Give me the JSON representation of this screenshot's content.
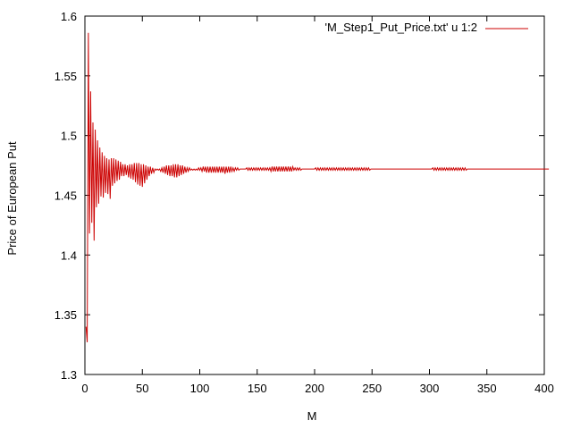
{
  "chart_data": {
    "type": "line",
    "title": "",
    "xlabel": "M",
    "ylabel": "Price of European Put",
    "xlim": [
      0,
      400
    ],
    "ylim": [
      1.3,
      1.6
    ],
    "x_ticks": [
      0,
      50,
      100,
      150,
      200,
      250,
      300,
      350,
      400
    ],
    "y_ticks": [
      1.3,
      1.35,
      1.4,
      1.45,
      1.5,
      1.55,
      1.6
    ],
    "x_tick_labels": [
      "0",
      "50",
      "100",
      "150",
      "200",
      "250",
      "300",
      "350",
      "400"
    ],
    "y_tick_labels": [
      "1.3",
      "1.35",
      "1.4",
      "1.45",
      "1.5",
      "1.55",
      "1.6"
    ],
    "grid": false,
    "legend_position": "top-right",
    "series": [
      {
        "name": "'M_Step1_Put_Price.txt' u 1:2",
        "color": "#cc0000",
        "x_start": 1,
        "x_step": 1,
        "values": [
          1.34,
          1.327,
          1.586,
          1.418,
          1.537,
          1.427,
          1.511,
          1.412,
          1.505,
          1.44,
          1.496,
          1.443,
          1.49,
          1.449,
          1.486,
          1.448,
          1.483,
          1.452,
          1.481,
          1.451,
          1.48,
          1.447,
          1.481,
          1.458,
          1.481,
          1.46,
          1.48,
          1.462,
          1.479,
          1.463,
          1.478,
          1.466,
          1.476,
          1.466,
          1.476,
          1.467,
          1.475,
          1.465,
          1.476,
          1.464,
          1.476,
          1.463,
          1.477,
          1.461,
          1.477,
          1.459,
          1.477,
          1.458,
          1.476,
          1.457,
          1.476,
          1.46,
          1.475,
          1.463,
          1.474,
          1.466,
          1.474,
          1.468,
          1.473,
          1.469,
          1.472,
          1.471,
          1.472,
          1.471,
          1.472,
          1.47,
          1.473,
          1.469,
          1.474,
          1.468,
          1.475,
          1.467,
          1.475,
          1.466,
          1.475,
          1.466,
          1.476,
          1.465,
          1.476,
          1.465,
          1.476,
          1.466,
          1.475,
          1.467,
          1.475,
          1.468,
          1.474,
          1.469,
          1.473,
          1.47,
          1.473,
          1.471,
          1.472,
          1.471,
          1.472,
          1.471,
          1.472,
          1.471,
          1.473,
          1.471,
          1.473,
          1.47,
          1.474,
          1.47,
          1.474,
          1.469,
          1.474,
          1.469,
          1.474,
          1.469,
          1.474,
          1.469,
          1.474,
          1.469,
          1.474,
          1.469,
          1.474,
          1.469,
          1.474,
          1.469,
          1.474,
          1.468,
          1.474,
          1.469,
          1.474,
          1.469,
          1.474,
          1.47,
          1.473,
          1.47,
          1.473,
          1.471,
          1.473,
          1.471,
          1.472,
          1.472,
          1.472,
          1.472,
          1.472,
          1.472,
          1.473,
          1.471,
          1.473,
          1.471,
          1.473,
          1.471,
          1.473,
          1.471,
          1.473,
          1.471,
          1.473,
          1.471,
          1.473,
          1.471,
          1.473,
          1.471,
          1.473,
          1.471,
          1.473,
          1.471,
          1.473,
          1.47,
          1.474,
          1.47,
          1.474,
          1.47,
          1.474,
          1.47,
          1.474,
          1.47,
          1.474,
          1.47,
          1.474,
          1.47,
          1.474,
          1.47,
          1.474,
          1.47,
          1.474,
          1.47,
          1.474,
          1.471,
          1.473,
          1.471,
          1.473,
          1.471,
          1.473,
          1.471,
          1.472,
          1.472,
          1.472,
          1.472,
          1.472,
          1.472,
          1.472,
          1.472,
          1.472,
          1.472,
          1.472,
          1.472,
          1.473,
          1.471,
          1.473,
          1.471,
          1.473,
          1.471,
          1.473,
          1.471,
          1.473,
          1.471,
          1.473,
          1.471,
          1.473,
          1.471,
          1.473,
          1.471,
          1.473,
          1.471,
          1.473,
          1.471,
          1.473,
          1.471,
          1.473,
          1.471,
          1.473,
          1.471,
          1.473,
          1.471,
          1.473,
          1.471,
          1.473,
          1.471,
          1.473,
          1.471,
          1.473,
          1.471,
          1.473,
          1.471,
          1.473,
          1.471,
          1.473,
          1.471,
          1.473,
          1.471,
          1.473,
          1.471,
          1.473,
          1.471,
          1.472,
          1.472,
          1.472,
          1.472,
          1.472,
          1.472,
          1.472,
          1.472,
          1.472,
          1.472,
          1.472,
          1.472,
          1.472,
          1.472,
          1.472,
          1.472,
          1.472,
          1.472,
          1.472,
          1.472,
          1.472,
          1.472,
          1.472,
          1.472,
          1.472,
          1.472,
          1.472,
          1.472,
          1.472,
          1.472,
          1.472,
          1.472,
          1.472,
          1.472,
          1.472,
          1.472,
          1.472,
          1.472,
          1.472,
          1.472,
          1.472,
          1.472,
          1.472,
          1.472,
          1.472,
          1.472,
          1.472,
          1.472,
          1.472,
          1.472,
          1.472,
          1.472,
          1.472,
          1.472,
          1.473,
          1.471,
          1.473,
          1.471,
          1.473,
          1.471,
          1.473,
          1.471,
          1.473,
          1.471,
          1.473,
          1.471,
          1.473,
          1.471,
          1.473,
          1.471,
          1.473,
          1.471,
          1.473,
          1.471,
          1.473,
          1.471,
          1.473,
          1.471,
          1.473,
          1.471,
          1.473,
          1.471,
          1.473,
          1.471,
          1.472,
          1.472,
          1.472,
          1.472,
          1.472,
          1.472,
          1.472,
          1.472,
          1.472,
          1.472,
          1.472,
          1.472,
          1.472,
          1.472,
          1.472,
          1.472,
          1.472,
          1.472,
          1.472,
          1.472,
          1.472,
          1.472,
          1.472,
          1.472,
          1.472,
          1.472,
          1.472,
          1.472,
          1.472,
          1.472,
          1.472,
          1.472,
          1.472,
          1.472,
          1.472,
          1.472,
          1.472,
          1.472,
          1.472,
          1.472,
          1.472,
          1.472,
          1.472,
          1.472,
          1.472,
          1.472,
          1.472,
          1.472,
          1.472,
          1.472,
          1.472,
          1.472,
          1.472,
          1.472,
          1.472,
          1.472,
          1.472,
          1.472,
          1.472,
          1.472,
          1.472,
          1.472,
          1.472,
          1.472,
          1.472,
          1.472,
          1.472,
          1.472,
          1.472,
          1.472,
          1.472,
          1.472
        ]
      }
    ]
  }
}
